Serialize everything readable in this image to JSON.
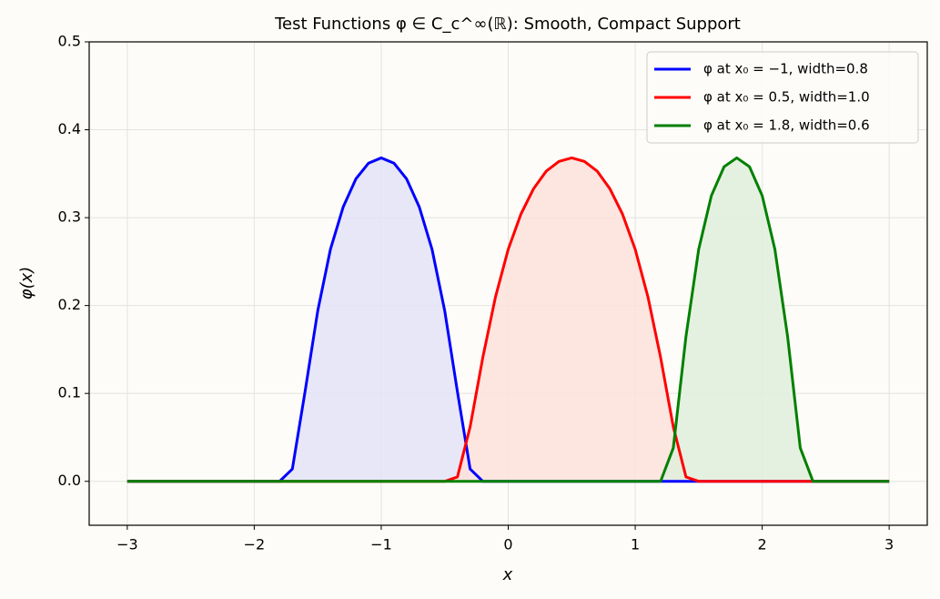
{
  "chart_data": {
    "type": "line",
    "title": "Test Functions φ ∈ C_c^∞(ℝ): Smooth, Compact Support",
    "xlabel": "x",
    "ylabel": "φ(x)",
    "x": [
      -3,
      -2.9,
      -2.8,
      -2.7,
      -2.6,
      -2.5,
      -2.4,
      -2.3,
      -2.2,
      -2.1,
      -2,
      -1.9,
      -1.8,
      -1.7,
      -1.6,
      -1.5,
      -1.4,
      -1.3,
      -1.2,
      -1.1,
      -1,
      -0.9,
      -0.8,
      -0.7,
      -0.6,
      -0.5,
      -0.4,
      -0.3,
      -0.2,
      -0.1,
      0,
      0.1,
      0.2,
      0.3,
      0.4,
      0.5,
      0.6,
      0.7,
      0.8,
      0.9,
      1,
      1.1,
      1.2,
      1.3,
      1.4,
      1.5,
      1.6,
      1.7,
      1.8,
      1.9,
      2,
      2.1,
      2.2,
      2.3,
      2.4,
      2.5,
      2.6,
      2.7,
      2.8,
      2.9,
      3
    ],
    "series": [
      {
        "name": "φ at x₀ = −1, width=0.8",
        "color": "#0000ff",
        "fill": "#e3e3f8",
        "values": [
          0,
          0,
          0,
          0,
          0,
          0,
          0,
          0,
          0,
          0,
          0,
          0,
          0,
          0.014,
          0.102,
          0.194,
          0.264,
          0.312,
          0.344,
          0.362,
          0.368,
          0.362,
          0.344,
          0.312,
          0.264,
          0.194,
          0.102,
          0.014,
          0,
          0,
          0,
          0,
          0,
          0,
          0,
          0,
          0,
          0,
          0,
          0,
          0,
          0,
          0,
          0,
          0,
          0,
          0,
          0,
          0,
          0,
          0,
          0,
          0,
          0,
          0,
          0,
          0,
          0,
          0,
          0,
          0
        ]
      },
      {
        "name": "φ at x₀ = 0.5, width=1.0",
        "color": "#ff0000",
        "fill": "#fde0dc",
        "values": [
          0,
          0,
          0,
          0,
          0,
          0,
          0,
          0,
          0,
          0,
          0,
          0,
          0,
          0,
          0,
          0,
          0,
          0,
          0,
          0,
          0,
          0,
          0,
          0,
          0,
          0,
          0.005,
          0.062,
          0.141,
          0.21,
          0.264,
          0.304,
          0.333,
          0.353,
          0.364,
          0.368,
          0.364,
          0.353,
          0.333,
          0.304,
          0.264,
          0.21,
          0.141,
          0.062,
          0.005,
          0,
          0,
          0,
          0,
          0,
          0,
          0,
          0,
          0,
          0,
          0,
          0,
          0,
          0,
          0,
          0
        ]
      },
      {
        "name": "φ at x₀ = 1.8, width=0.6",
        "color": "#008000",
        "fill": "#e1efdc",
        "values": [
          0,
          0,
          0,
          0,
          0,
          0,
          0,
          0,
          0,
          0,
          0,
          0,
          0,
          0,
          0,
          0,
          0,
          0,
          0,
          0,
          0,
          0,
          0,
          0,
          0,
          0,
          0,
          0,
          0,
          0,
          0,
          0,
          0,
          0,
          0,
          0,
          0,
          0,
          0,
          0,
          0,
          0,
          0,
          0.038,
          0.165,
          0.264,
          0.325,
          0.358,
          0.368,
          0.358,
          0.325,
          0.264,
          0.165,
          0.038,
          0,
          0,
          0,
          0,
          0,
          0,
          0
        ]
      }
    ],
    "xlim": [
      -3.3,
      3.3
    ],
    "xticks": [
      {
        "value": -3,
        "label": "−3"
      },
      {
        "value": -2,
        "label": "−2"
      },
      {
        "value": -1,
        "label": "−1"
      },
      0,
      1,
      2,
      3
    ],
    "ylim": [
      -0.05,
      0.5
    ],
    "yticks": [
      {
        "value": 0,
        "label": "0.0"
      },
      0.1,
      0.2,
      0.3,
      0.4,
      0.5
    ],
    "grid": true,
    "legend": "upper right"
  }
}
